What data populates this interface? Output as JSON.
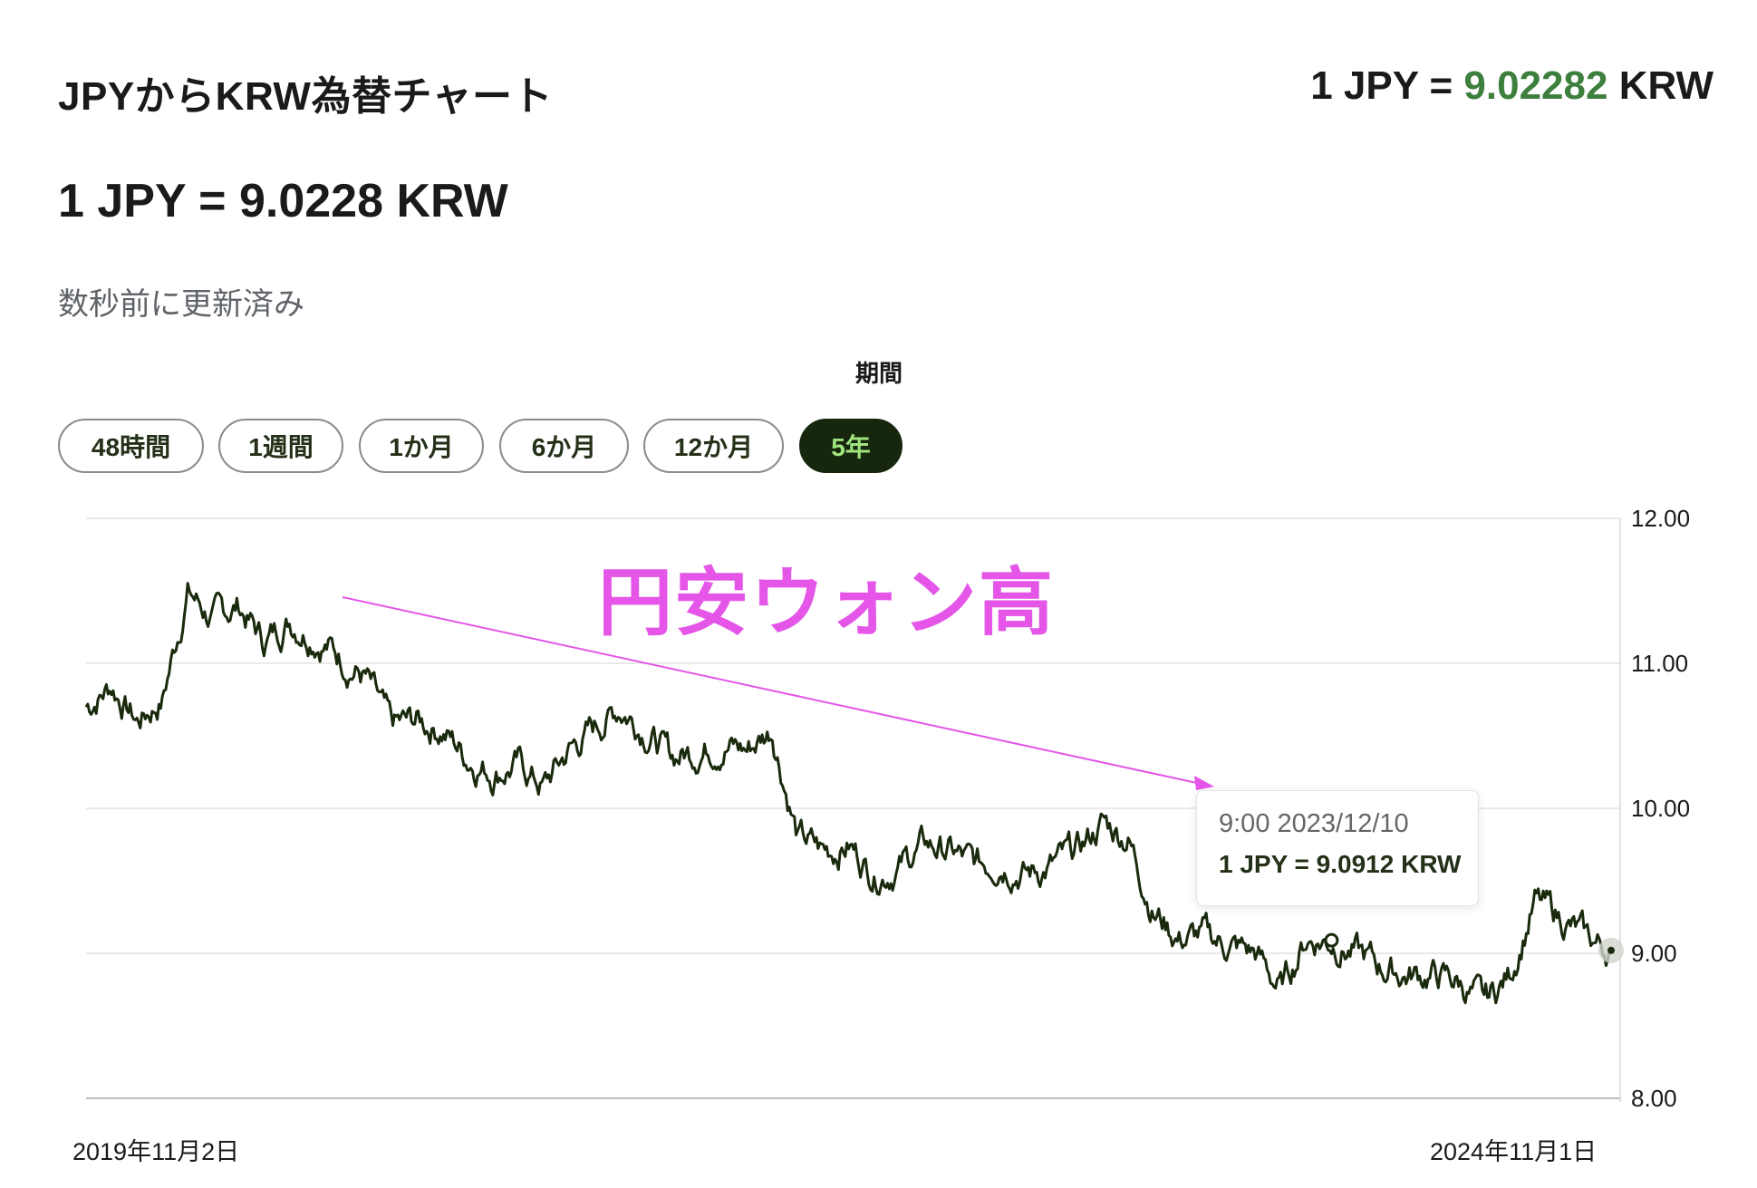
{
  "header": {
    "title": "JPYからKRW為替チャート",
    "ticker_prefix": "1 JPY = ",
    "ticker_value": "9.02282",
    "ticker_suffix": " KRW"
  },
  "rate": {
    "main": "1 JPY = 9.0228 KRW",
    "updated": "数秒前に更新済み"
  },
  "period": {
    "label": "期間",
    "options": [
      "48時間",
      "1週間",
      "1か月",
      "6か月",
      "12か月",
      "5年"
    ],
    "selected": "5年"
  },
  "annotation": {
    "text": "円安ウォン高"
  },
  "tooltip": {
    "time": "9:00 2023/12/10",
    "rate": "1 JPY = 9.0912 KRW"
  },
  "colors": {
    "line": "#1a2a0d",
    "accent": "#3d7f3d",
    "annotation": "#e455e8",
    "active_pill_bg": "#16270e",
    "active_pill_text": "#9ee37d"
  },
  "chart_data": {
    "type": "line",
    "x_start_label": "2019年11月2日",
    "x_end_label": "2024年11月1日",
    "ylim": [
      8.0,
      12.0
    ],
    "yticks": [
      "12.00",
      "11.00",
      "10.00",
      "9.00"
    ],
    "ytick_bottom": "8.00",
    "grid": true,
    "series": [
      {
        "x": [
          "2019-11",
          "2019-12",
          "2020-01",
          "2020-02",
          "2020-03",
          "2020-04",
          "2020-05",
          "2020-06",
          "2020-07",
          "2020-08",
          "2020-09",
          "2020-10",
          "2020-11",
          "2020-12",
          "2021-01",
          "2021-02",
          "2021-03",
          "2021-04",
          "2021-05",
          "2021-06",
          "2021-07",
          "2021-08",
          "2021-09",
          "2021-10",
          "2021-11",
          "2021-12",
          "2022-01",
          "2022-02",
          "2022-03",
          "2022-04",
          "2022-05",
          "2022-06",
          "2022-07",
          "2022-08",
          "2022-09",
          "2022-10",
          "2022-11",
          "2022-12",
          "2023-01",
          "2023-02",
          "2023-03",
          "2023-04",
          "2023-05",
          "2023-06",
          "2023-07",
          "2023-08",
          "2023-09",
          "2023-10",
          "2023-11",
          "2023-12",
          "2024-01",
          "2024-02",
          "2024-03",
          "2024-04",
          "2024-05",
          "2024-06",
          "2024-07",
          "2024-08",
          "2024-09",
          "2024-10",
          "2024-11"
        ],
        "values": [
          10.7,
          10.85,
          10.6,
          10.75,
          11.5,
          11.3,
          11.4,
          11.15,
          11.3,
          11.2,
          11.05,
          10.9,
          10.55,
          10.6,
          10.55,
          10.35,
          10.25,
          10.3,
          10.15,
          10.4,
          10.55,
          10.7,
          10.55,
          10.35,
          10.4,
          10.45,
          10.4,
          10.55,
          9.8,
          9.7,
          9.75,
          9.55,
          9.6,
          9.75,
          9.7,
          9.6,
          9.65,
          9.55,
          9.6,
          9.7,
          9.9,
          9.8,
          9.3,
          9.1,
          9.12,
          9.05,
          9.0,
          8.75,
          9.1,
          9.09,
          9.0,
          8.9,
          8.85,
          8.85,
          8.8,
          8.65,
          8.85,
          9.35,
          9.25,
          9.1,
          9.02
        ]
      }
    ]
  }
}
